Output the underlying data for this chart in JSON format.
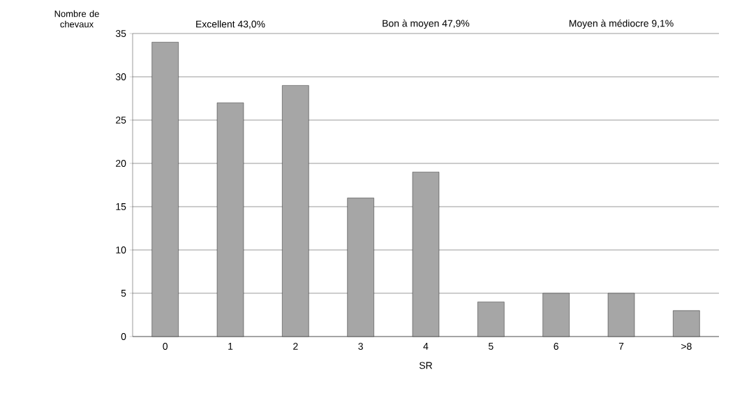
{
  "chart_data": {
    "type": "bar",
    "xlabel": "SR",
    "ylabel": "Nombre de chevaux",
    "categories": [
      "0",
      "1",
      "2",
      "3",
      "4",
      "5",
      "6",
      "7",
      ">8"
    ],
    "values": [
      34,
      27,
      29,
      16,
      19,
      4,
      5,
      5,
      3
    ],
    "color": "#a6a6a6",
    "ylim": [
      0,
      35
    ],
    "yticks": [
      0,
      5,
      10,
      15,
      20,
      25,
      30,
      35
    ],
    "grid": "y",
    "annotations": [
      "Excellent 43,0%",
      "Bon à moyen 47,9%",
      "Moyen à médiocre 9,1%"
    ]
  }
}
